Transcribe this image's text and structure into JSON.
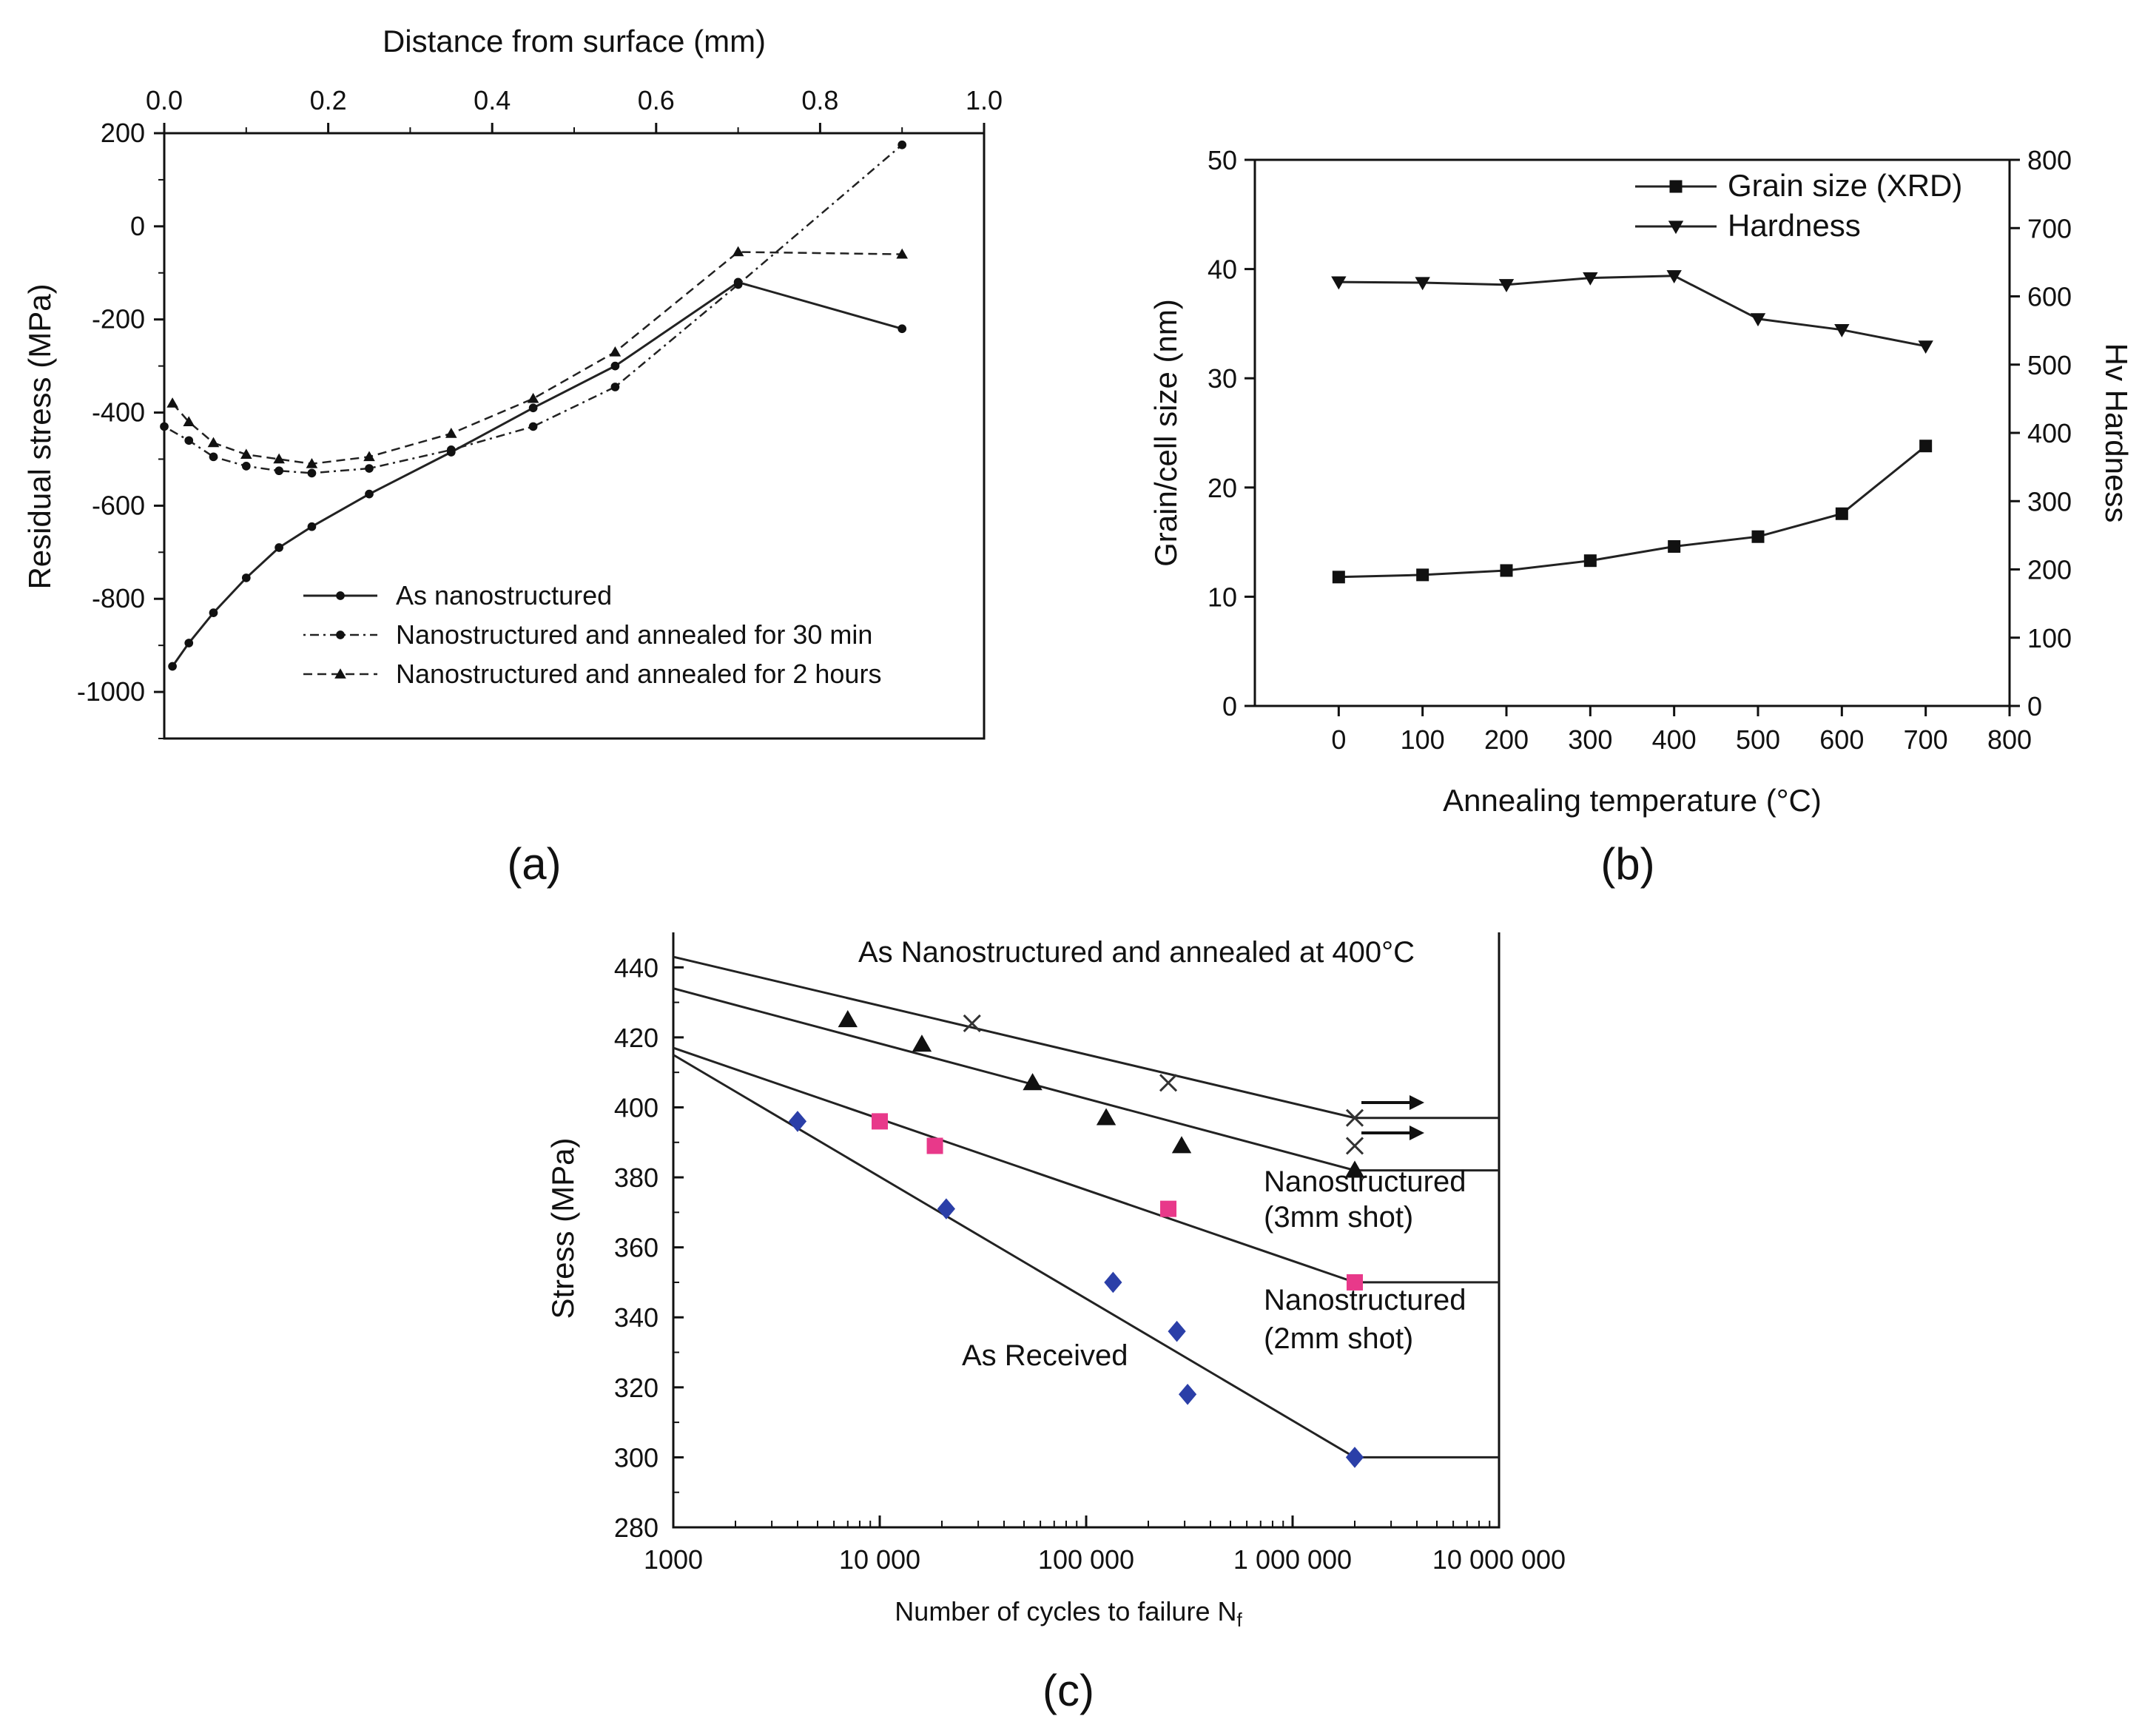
{
  "chart_data": [
    {
      "id": "a",
      "type": "line",
      "panel_label": "(a)",
      "xlabel": "Distance from surface (mm)",
      "ylabel": "Residual stress (MPa)",
      "xlim": [
        0,
        1.0
      ],
      "ylim": [
        -1100,
        200
      ],
      "xticks": [
        0.0,
        0.2,
        0.4,
        0.6,
        0.8,
        1.0
      ],
      "xtick_labels": [
        "0.0",
        "0.2",
        "0.4",
        "0.6",
        "0.8",
        "1.0"
      ],
      "yticks": [
        200,
        0,
        -200,
        -400,
        -600,
        -800,
        -1000
      ],
      "ytick_labels": [
        "200",
        "0",
        "-200",
        "-400",
        "-600",
        "-800",
        "-1000"
      ],
      "legend": {
        "position": "bottom-right"
      },
      "series": [
        {
          "name": "As nanostructured",
          "style": "solid",
          "marker": "circle",
          "x": [
            0.01,
            0.03,
            0.06,
            0.1,
            0.14,
            0.18,
            0.25,
            0.35,
            0.45,
            0.55,
            0.7,
            0.9
          ],
          "y": [
            -945,
            -895,
            -830,
            -755,
            -690,
            -645,
            -575,
            -485,
            -390,
            -300,
            -120,
            -220
          ]
        },
        {
          "name": "Nanostructured and annealed for 30 min",
          "style": "dotdash",
          "marker": "circle",
          "x": [
            0.0,
            0.03,
            0.06,
            0.1,
            0.14,
            0.18,
            0.25,
            0.35,
            0.45,
            0.55,
            0.7,
            0.9
          ],
          "y": [
            -430,
            -460,
            -495,
            -515,
            -525,
            -530,
            -520,
            -480,
            -430,
            -345,
            -125,
            175
          ]
        },
        {
          "name": "Nanostructured and annealed for 2 hours",
          "style": "dashed",
          "marker": "triangle",
          "x": [
            0.01,
            0.03,
            0.06,
            0.1,
            0.14,
            0.18,
            0.25,
            0.35,
            0.45,
            0.55,
            0.7,
            0.9
          ],
          "y": [
            -380,
            -420,
            -465,
            -490,
            -500,
            -510,
            -495,
            -445,
            -370,
            -270,
            -55,
            -60
          ]
        }
      ]
    },
    {
      "id": "b",
      "type": "line",
      "panel_label": "(b)",
      "xlabel": "Annealing temperature (°C)",
      "ylabel": "Grain/cell size (nm)",
      "y2label": "Hv Hardness",
      "xlim": [
        -100,
        800
      ],
      "ylim": [
        0,
        50
      ],
      "y2lim": [
        0,
        800
      ],
      "xticks": [
        0,
        100,
        200,
        300,
        400,
        500,
        600,
        700,
        800
      ],
      "xtick_labels": [
        "0",
        "100",
        "200",
        "300",
        "400",
        "500",
        "600",
        "700",
        "800"
      ],
      "yticks": [
        0,
        10,
        20,
        30,
        40,
        50
      ],
      "ytick_labels": [
        "0",
        "10",
        "20",
        "30",
        "40",
        "50"
      ],
      "y2ticks": [
        0,
        100,
        200,
        300,
        400,
        500,
        600,
        700,
        800
      ],
      "y2tick_labels": [
        "0",
        "100",
        "200",
        "300",
        "400",
        "500",
        "600",
        "700",
        "800"
      ],
      "legend": {
        "position": "top-right"
      },
      "series": [
        {
          "name": "Grain size (XRD)",
          "axis": "left",
          "marker": "square",
          "x": [
            0,
            100,
            200,
            300,
            400,
            500,
            600,
            700
          ],
          "y": [
            11.8,
            12.0,
            12.4,
            13.3,
            14.6,
            15.5,
            17.6,
            23.8
          ]
        },
        {
          "name": "Hardness",
          "axis": "right",
          "marker": "triangle-down",
          "x": [
            0,
            100,
            200,
            300,
            400,
            500,
            600,
            700
          ],
          "y": [
            621,
            620,
            617,
            627,
            630,
            567,
            551,
            527
          ]
        }
      ]
    },
    {
      "id": "c",
      "type": "scatter",
      "panel_label": "(c)",
      "xlabel": "Number of cycles to failure N",
      "xlabel_sub": "f",
      "ylabel": "Stress (MPa)",
      "xscale": "log",
      "xlim": [
        1000,
        10000000
      ],
      "ylim": [
        280,
        450
      ],
      "xticks": [
        1000,
        10000,
        100000,
        1000000,
        10000000
      ],
      "xtick_labels": [
        "1000",
        "10 000",
        "100 000",
        "1 000 000",
        "10 000 000"
      ],
      "yticks": [
        280,
        300,
        320,
        340,
        360,
        380,
        400,
        420,
        440
      ],
      "ytick_labels": [
        "280",
        "300",
        "320",
        "340",
        "360",
        "380",
        "400",
        "420",
        "440"
      ],
      "annotations": [
        "As Nanostructured and annealed at 400°C",
        "Nanostructured",
        "(3mm shot)",
        "Nanostructured",
        "(2mm shot)",
        "As Received"
      ],
      "series": [
        {
          "name": "As Nanostructured and annealed at 400°C",
          "marker": "x",
          "color": "#333333",
          "x": [
            28000,
            250000,
            2000000,
            2000000
          ],
          "y": [
            424,
            407,
            397,
            389
          ],
          "line": {
            "x": [
              1000,
              2000000,
              10000000
            ],
            "y": [
              443,
              397,
              397
            ]
          }
        },
        {
          "name": "Nanostructured (3mm shot)",
          "marker": "triangle",
          "color": "#111111",
          "x": [
            7000,
            16000,
            55000,
            125000,
            290000,
            2000000
          ],
          "y": [
            425,
            418,
            407,
            397,
            389,
            382
          ],
          "line": {
            "x": [
              1000,
              2000000,
              10000000
            ],
            "y": [
              434,
              382,
              382
            ]
          }
        },
        {
          "name": "Nanostructured (2mm shot)",
          "marker": "square",
          "color": "#e8398a",
          "x": [
            10000,
            18500,
            250000,
            2000000
          ],
          "y": [
            396,
            389,
            371,
            350
          ],
          "line": {
            "x": [
              1000,
              2000000,
              10000000
            ],
            "y": [
              417,
              350,
              350
            ]
          }
        },
        {
          "name": "As Received",
          "marker": "diamond",
          "color": "#2b3fa8",
          "x": [
            4000,
            21000,
            135000,
            275000,
            310000,
            2000000
          ],
          "y": [
            396,
            371,
            350,
            336,
            318,
            300
          ],
          "line": {
            "x": [
              1000,
              2000000,
              10000000
            ],
            "y": [
              415,
              300,
              300
            ]
          }
        }
      ]
    }
  ]
}
